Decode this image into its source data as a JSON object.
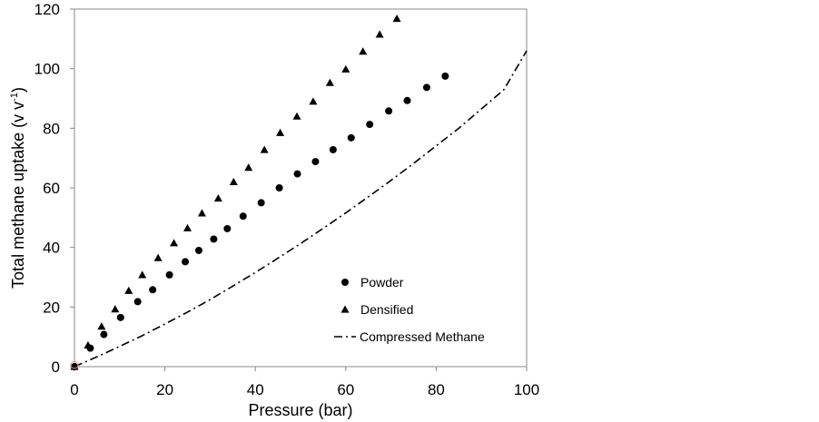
{
  "chart_data": {
    "type": "scatter",
    "xlabel": "Pressure (bar)",
    "ylabel": {
      "main": "Total methane uptake (v v",
      "sup": "-1",
      "end": ")"
    },
    "xlim": [
      0,
      100
    ],
    "ylim": [
      0,
      120
    ],
    "x_ticks": [
      0,
      20,
      40,
      60,
      80,
      100
    ],
    "y_ticks": [
      0,
      20,
      40,
      60,
      80,
      100,
      120
    ],
    "grid": false,
    "legend_position": "inside-lower-right",
    "series": [
      {
        "name": "Powder",
        "marker": "circle",
        "x": [
          0,
          3.5,
          6.5,
          10.2,
          14.0,
          17.3,
          21.0,
          24.5,
          27.5,
          30.8,
          33.8,
          37.3,
          41.3,
          45.3,
          49.3,
          53.3,
          57.2,
          61.2,
          65.3,
          69.5,
          73.6,
          77.9,
          82.0
        ],
        "y": [
          0,
          6.2,
          10.8,
          16.5,
          21.8,
          25.8,
          30.8,
          35.2,
          39.0,
          42.8,
          46.3,
          50.5,
          55.0,
          60.0,
          64.7,
          68.8,
          72.8,
          76.8,
          81.3,
          85.8,
          89.3,
          93.7,
          97.5
        ]
      },
      {
        "name": "Densified",
        "marker": "triangle",
        "x": [
          0,
          3.0,
          6.0,
          9.0,
          12.0,
          15.0,
          18.5,
          22.0,
          25.0,
          28.2,
          31.8,
          35.2,
          38.5,
          42.0,
          45.5,
          49.2,
          52.8,
          56.5,
          60.0,
          63.8,
          67.5,
          71.3
        ],
        "y": [
          0,
          7.2,
          13.5,
          19.3,
          25.5,
          30.8,
          36.5,
          41.5,
          46.5,
          51.5,
          56.5,
          62.0,
          66.8,
          72.8,
          78.5,
          84.0,
          89.0,
          95.3,
          99.8,
          105.8,
          111.5,
          116.8
        ]
      },
      {
        "name": "Compressed Methane",
        "style": "dash-dot",
        "x": [
          0,
          5,
          10,
          15,
          20,
          25,
          30,
          35,
          40,
          45,
          50,
          55,
          60,
          65,
          70,
          75,
          80,
          85,
          90,
          95,
          100
        ],
        "y": [
          0,
          3.3,
          6.8,
          10.4,
          14.3,
          18.3,
          22.5,
          27.0,
          31.6,
          36.4,
          41.3,
          46.4,
          51.6,
          57.0,
          62.5,
          68.2,
          74.1,
          80.0,
          86.5,
          93.0,
          106.0
        ]
      }
    ]
  },
  "colors": {
    "axis": "#888888",
    "marker": "#000000",
    "origin_marker": "#e8a0a0"
  }
}
